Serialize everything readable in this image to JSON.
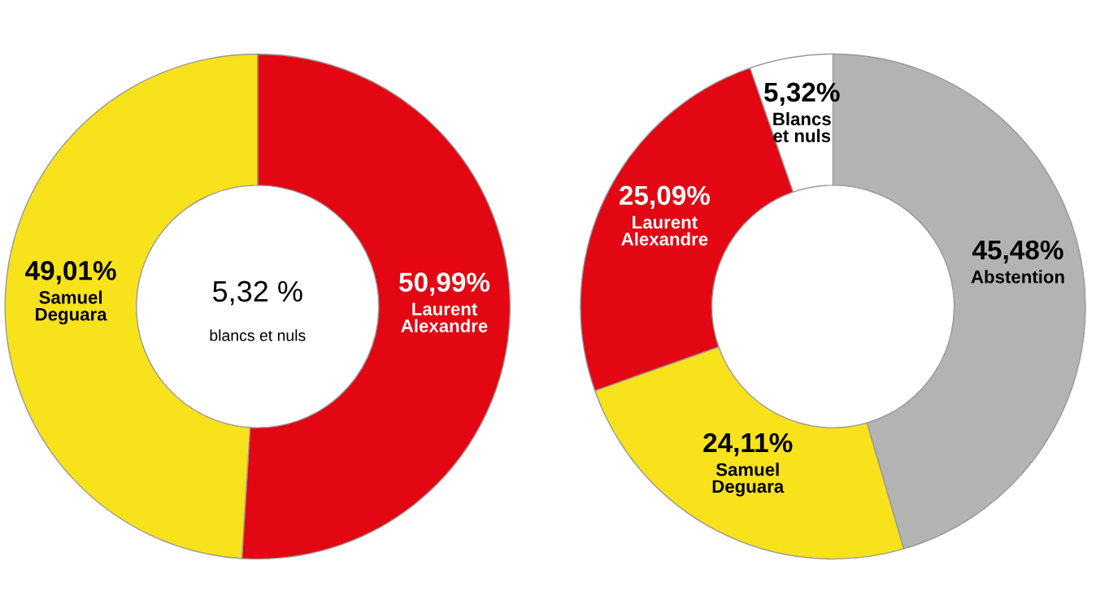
{
  "chart_data": [
    {
      "type": "donut",
      "categories": [
        "Laurent\nAlexandre",
        "Samuel\nDeguara"
      ],
      "values": [
        50.99,
        49.01
      ],
      "colors": [
        "#e30613",
        "#f7e21b"
      ],
      "value_labels": [
        "50,99%",
        "49,01%"
      ],
      "annotations": [
        "5,32 %",
        "blancs et nuls"
      ]
    },
    {
      "type": "donut",
      "categories": [
        "Abstention",
        "Samuel\nDeguara",
        "Laurent\nAlexandre",
        "Blancs\net nuls"
      ],
      "values": [
        45.48,
        24.11,
        25.09,
        5.32
      ],
      "colors": [
        "#b3b3b3",
        "#f7e21b",
        "#e30613",
        "#ffffff"
      ],
      "value_labels": [
        "45,48%",
        "24,11%",
        "25,09%",
        "5,32%"
      ]
    }
  ]
}
